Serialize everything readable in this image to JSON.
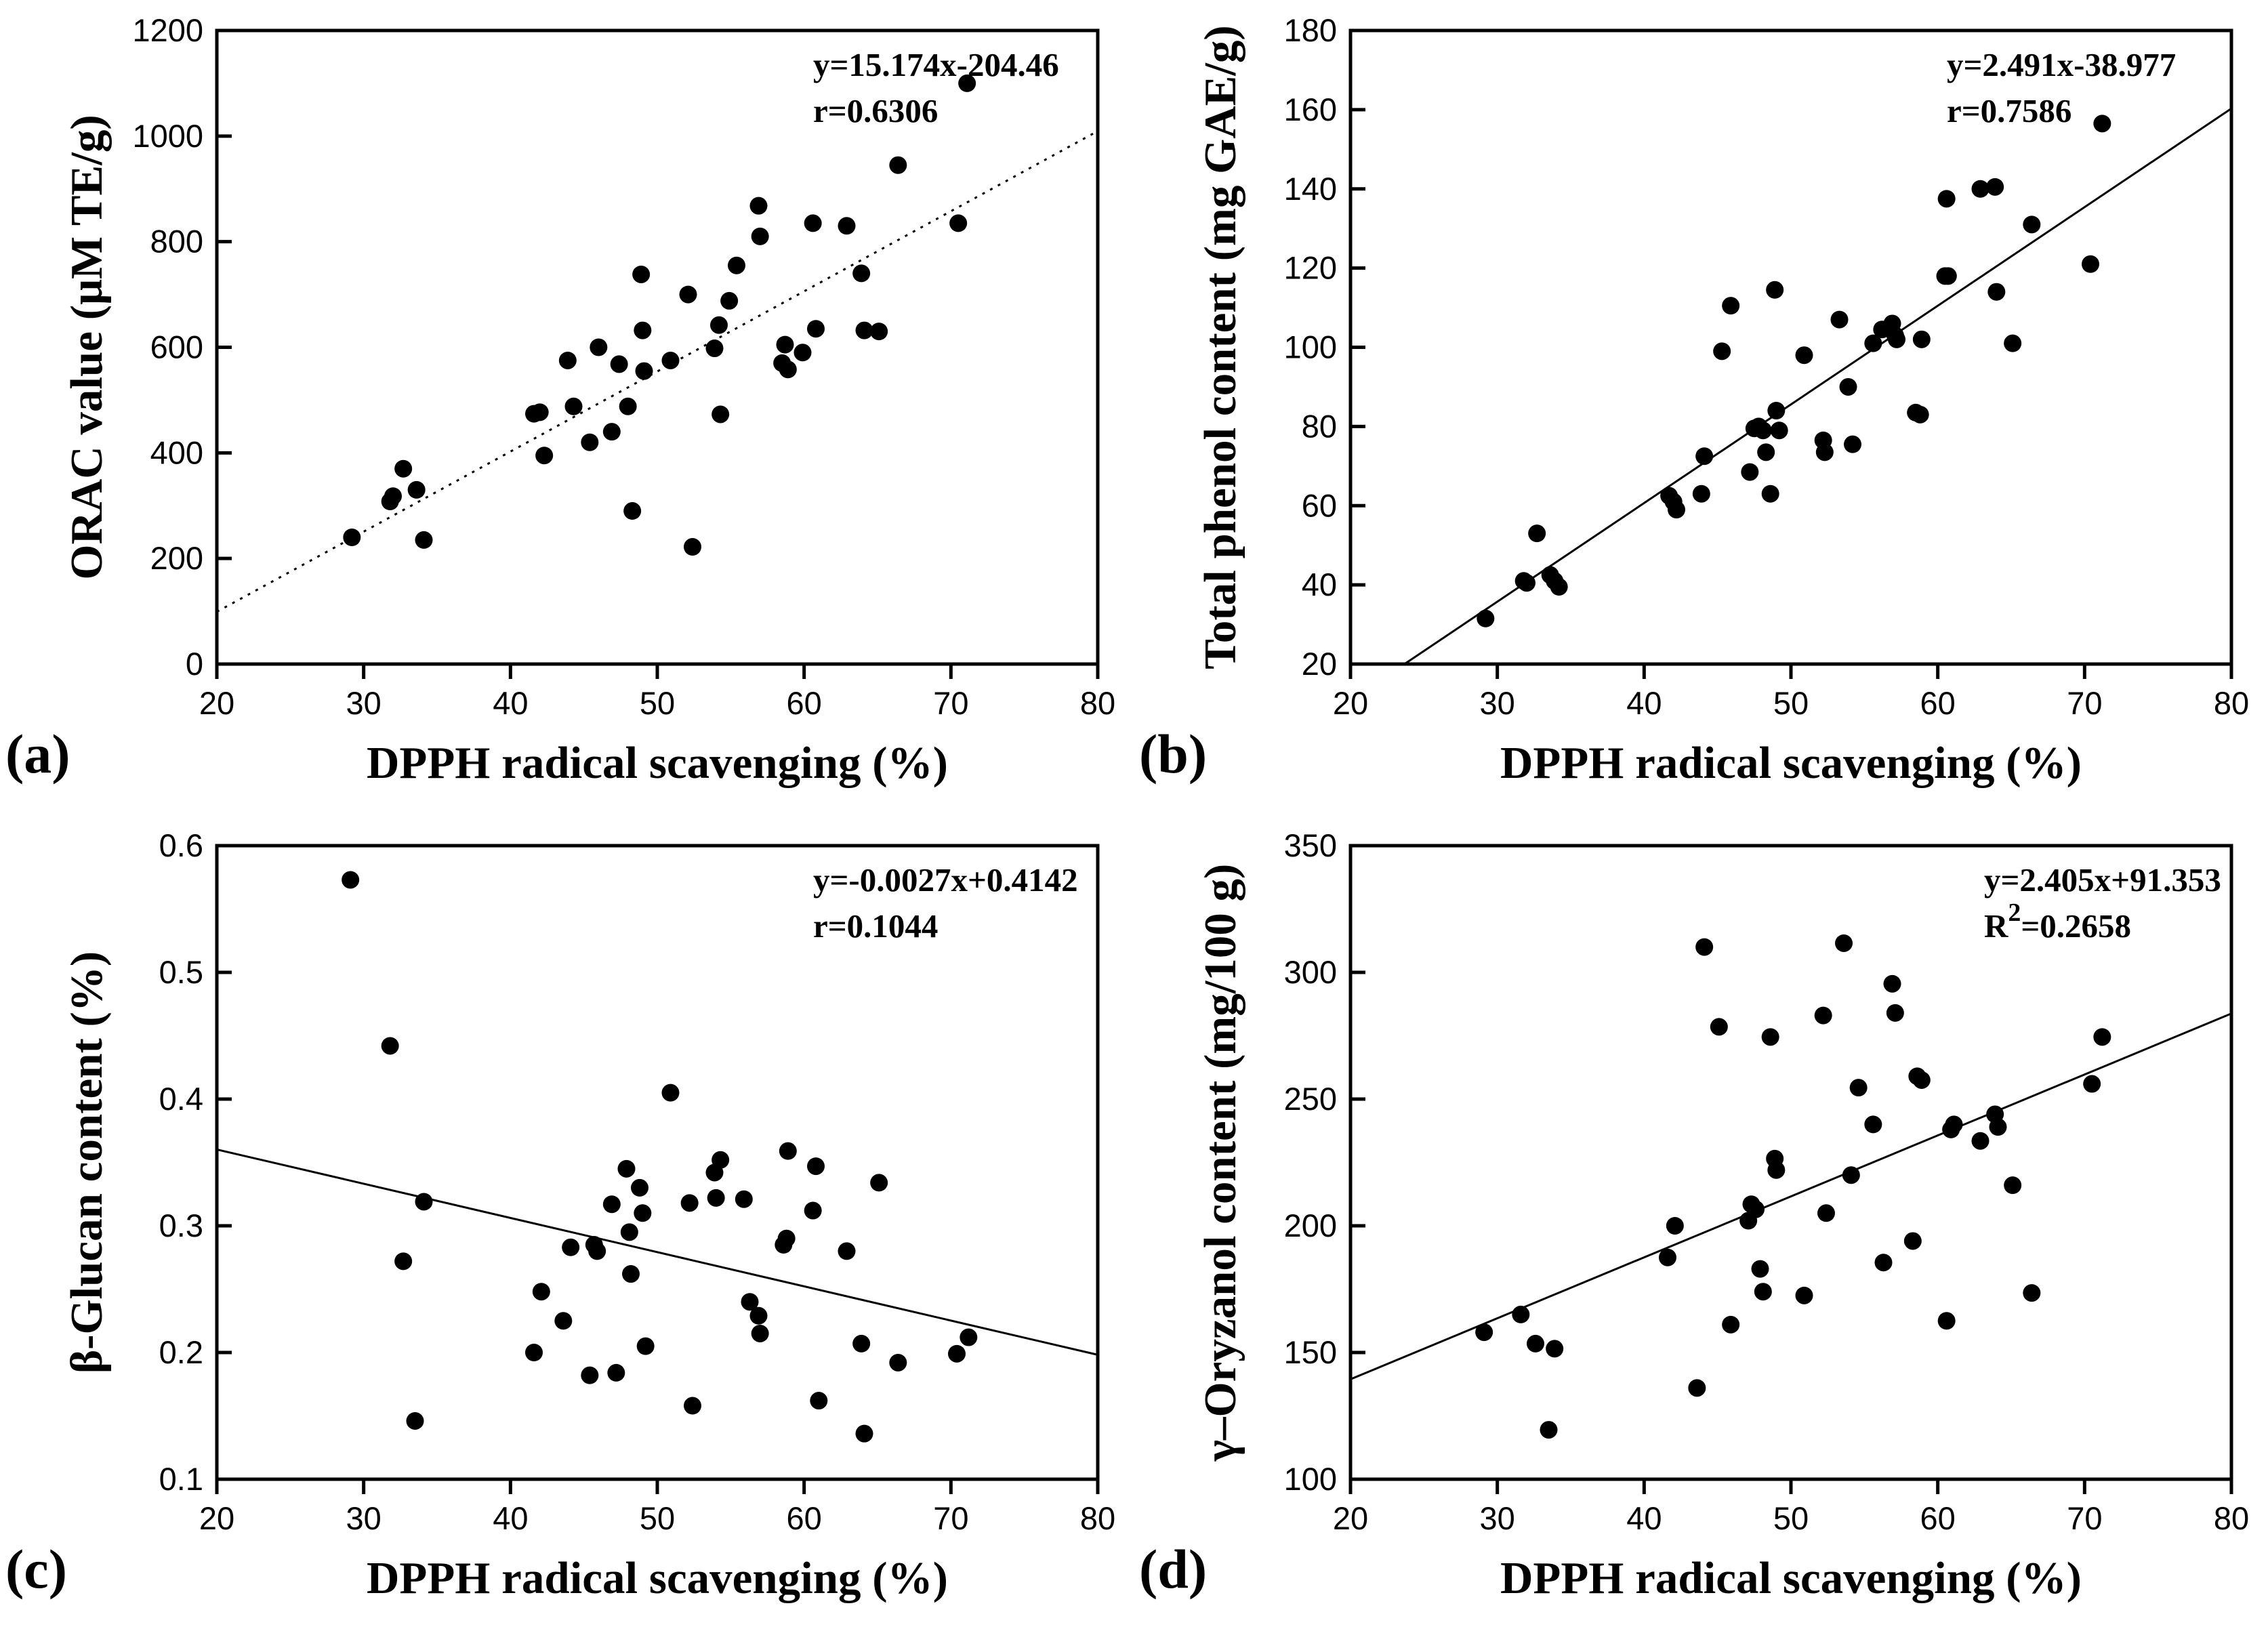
{
  "figure": {
    "background": "#ffffff",
    "marker_color": "#000000",
    "axis_color": "#000000",
    "shared_xlabel": "DPPH radical scavenging (%)"
  },
  "chart_data": [
    {
      "type": "scatter",
      "tag": "(a)",
      "xlabel": "DPPH radical scavenging (%)",
      "ylabel": "ORAC value (μM TE/g)",
      "equation": "y=15.174x-204.46",
      "r_label": "r=0.6306",
      "xlim": [
        20,
        80
      ],
      "ylim": [
        0,
        1200
      ],
      "x_ticks": [
        20,
        30,
        40,
        50,
        60,
        70,
        80
      ],
      "y_ticks": [
        0,
        200,
        400,
        600,
        800,
        1000,
        1200
      ],
      "grid": false,
      "legend": "none",
      "trend": {
        "slope": 15.174,
        "intercept": -204.46,
        "style": "dotted"
      },
      "marker_color": "#000000",
      "points": [
        [
          29.2,
          240
        ],
        [
          31.8,
          308
        ],
        [
          32.0,
          318
        ],
        [
          32.7,
          370
        ],
        [
          33.6,
          330
        ],
        [
          34.1,
          235
        ],
        [
          41.6,
          474
        ],
        [
          42.0,
          477
        ],
        [
          42.3,
          395
        ],
        [
          43.9,
          575
        ],
        [
          44.3,
          488
        ],
        [
          45.4,
          420
        ],
        [
          46.0,
          600
        ],
        [
          46.9,
          440
        ],
        [
          47.4,
          568
        ],
        [
          48.0,
          488
        ],
        [
          48.3,
          290
        ],
        [
          48.9,
          738
        ],
        [
          49.0,
          632
        ],
        [
          49.1,
          555
        ],
        [
          50.9,
          575
        ],
        [
          52.1,
          700
        ],
        [
          52.4,
          222
        ],
        [
          53.9,
          598
        ],
        [
          54.2,
          642
        ],
        [
          54.3,
          473
        ],
        [
          54.9,
          688
        ],
        [
          55.4,
          755
        ],
        [
          56.9,
          868
        ],
        [
          57.0,
          810
        ],
        [
          58.5,
          570
        ],
        [
          58.7,
          605
        ],
        [
          58.9,
          558
        ],
        [
          59.9,
          590
        ],
        [
          60.6,
          835
        ],
        [
          60.8,
          635
        ],
        [
          62.9,
          830
        ],
        [
          63.9,
          740
        ],
        [
          64.1,
          632
        ],
        [
          65.1,
          630
        ],
        [
          66.4,
          945
        ],
        [
          70.5,
          835
        ],
        [
          71.1,
          1100
        ]
      ]
    },
    {
      "type": "scatter",
      "tag": "(b)",
      "xlabel": "DPPH radical scavenging (%)",
      "ylabel": "Total phenol content (mg GAE/g)",
      "equation": "y=2.491x-38.977",
      "r_label": "r=0.7586",
      "xlim": [
        20,
        80
      ],
      "ylim": [
        20,
        180
      ],
      "x_ticks": [
        20,
        30,
        40,
        50,
        60,
        70,
        80
      ],
      "y_ticks": [
        20,
        40,
        60,
        80,
        100,
        120,
        140,
        160,
        180
      ],
      "grid": false,
      "legend": "none",
      "trend": {
        "slope": 2.491,
        "intercept": -38.977,
        "style": "solid"
      },
      "marker_color": "#000000",
      "points": [
        [
          29.2,
          31.5
        ],
        [
          31.8,
          41
        ],
        [
          32.0,
          40.5
        ],
        [
          32.7,
          53
        ],
        [
          33.6,
          42.5
        ],
        [
          33.9,
          41
        ],
        [
          34.2,
          39.5
        ],
        [
          41.7,
          62.5
        ],
        [
          42.0,
          61
        ],
        [
          42.2,
          59
        ],
        [
          43.9,
          63
        ],
        [
          44.1,
          72.5
        ],
        [
          45.3,
          99
        ],
        [
          45.9,
          110.5
        ],
        [
          47.2,
          68.5
        ],
        [
          47.5,
          79.5
        ],
        [
          47.8,
          80
        ],
        [
          48.1,
          79
        ],
        [
          48.3,
          73.5
        ],
        [
          48.6,
          63
        ],
        [
          48.9,
          114.5
        ],
        [
          49.0,
          84
        ],
        [
          49.2,
          79
        ],
        [
          50.9,
          98
        ],
        [
          52.2,
          76.5
        ],
        [
          52.3,
          73.5
        ],
        [
          53.3,
          107
        ],
        [
          53.9,
          90
        ],
        [
          54.2,
          75.5
        ],
        [
          55.6,
          101
        ],
        [
          56.2,
          104.5
        ],
        [
          56.9,
          106
        ],
        [
          57.1,
          103
        ],
        [
          57.2,
          102
        ],
        [
          58.5,
          83.5
        ],
        [
          58.8,
          83
        ],
        [
          58.9,
          102
        ],
        [
          60.5,
          118
        ],
        [
          60.7,
          118
        ],
        [
          60.6,
          137.5
        ],
        [
          62.9,
          140
        ],
        [
          63.9,
          140.5
        ],
        [
          64.0,
          114
        ],
        [
          65.1,
          101
        ],
        [
          66.4,
          131
        ],
        [
          70.4,
          121
        ],
        [
          71.2,
          156.5
        ]
      ]
    },
    {
      "type": "scatter",
      "tag": "(c)",
      "xlabel": "DPPH radical scavenging (%)",
      "ylabel": "β-Glucan content (%)",
      "equation": "y=-0.0027x+0.4142",
      "r_label": "r=0.1044",
      "xlim": [
        20,
        80
      ],
      "ylim": [
        0.1,
        0.6
      ],
      "x_ticks": [
        20,
        30,
        40,
        50,
        60,
        70,
        80
      ],
      "y_ticks": [
        0.1,
        0.2,
        0.3,
        0.4,
        0.5,
        0.6
      ],
      "grid": false,
      "legend": "none",
      "trend": {
        "slope": -0.0027,
        "intercept": 0.4142,
        "style": "solid"
      },
      "marker_color": "#000000",
      "points": [
        [
          29.1,
          0.573
        ],
        [
          31.8,
          0.442
        ],
        [
          32.7,
          0.272
        ],
        [
          33.5,
          0.146
        ],
        [
          34.1,
          0.319
        ],
        [
          41.6,
          0.2
        ],
        [
          42.1,
          0.248
        ],
        [
          43.6,
          0.225
        ],
        [
          44.1,
          0.283
        ],
        [
          45.4,
          0.182
        ],
        [
          45.7,
          0.285
        ],
        [
          45.9,
          0.28
        ],
        [
          46.9,
          0.317
        ],
        [
          47.2,
          0.184
        ],
        [
          47.9,
          0.345
        ],
        [
          48.1,
          0.295
        ],
        [
          48.2,
          0.262
        ],
        [
          48.8,
          0.33
        ],
        [
          49.0,
          0.31
        ],
        [
          49.2,
          0.205
        ],
        [
          50.9,
          0.405
        ],
        [
          52.2,
          0.318
        ],
        [
          52.4,
          0.158
        ],
        [
          53.9,
          0.342
        ],
        [
          54.0,
          0.322
        ],
        [
          54.3,
          0.352
        ],
        [
          55.9,
          0.321
        ],
        [
          56.3,
          0.24
        ],
        [
          56.9,
          0.229
        ],
        [
          57.0,
          0.215
        ],
        [
          58.6,
          0.285
        ],
        [
          58.8,
          0.29
        ],
        [
          58.9,
          0.359
        ],
        [
          60.6,
          0.312
        ],
        [
          60.8,
          0.347
        ],
        [
          61.0,
          0.162
        ],
        [
          62.9,
          0.28
        ],
        [
          63.9,
          0.207
        ],
        [
          64.1,
          0.136
        ],
        [
          65.1,
          0.334
        ],
        [
          66.4,
          0.192
        ],
        [
          70.4,
          0.199
        ],
        [
          71.2,
          0.212
        ]
      ]
    },
    {
      "type": "scatter",
      "tag": "(d)",
      "xlabel": "DPPH radical scavenging (%)",
      "ylabel": "γ–Oryzanol content (mg/100 g)",
      "equation": "y=2.405x+91.353",
      "r_label": "R²=0.2658",
      "xlim": [
        20,
        80
      ],
      "ylim": [
        100,
        350
      ],
      "x_ticks": [
        20,
        30,
        40,
        50,
        60,
        70,
        80
      ],
      "y_ticks": [
        100,
        150,
        200,
        250,
        300,
        350
      ],
      "grid": false,
      "legend": "none",
      "trend": {
        "slope": 2.405,
        "intercept": 91.353,
        "style": "solid"
      },
      "marker_color": "#000000",
      "points": [
        [
          29.1,
          158
        ],
        [
          31.6,
          165
        ],
        [
          32.6,
          153.5
        ],
        [
          33.5,
          119.5
        ],
        [
          33.9,
          151.5
        ],
        [
          41.6,
          187.5
        ],
        [
          42.1,
          200
        ],
        [
          43.6,
          136
        ],
        [
          44.1,
          310
        ],
        [
          45.1,
          278.5
        ],
        [
          45.9,
          161
        ],
        [
          47.1,
          202
        ],
        [
          47.3,
          208.5
        ],
        [
          47.6,
          206.5
        ],
        [
          47.9,
          183
        ],
        [
          48.1,
          174
        ],
        [
          48.6,
          274.5
        ],
        [
          48.9,
          226.5
        ],
        [
          49.0,
          222
        ],
        [
          50.9,
          172.5
        ],
        [
          52.2,
          283
        ],
        [
          52.4,
          205
        ],
        [
          53.6,
          311.5
        ],
        [
          54.1,
          220
        ],
        [
          54.6,
          254.5
        ],
        [
          55.6,
          240
        ],
        [
          56.3,
          185.5
        ],
        [
          56.9,
          295.5
        ],
        [
          57.1,
          284
        ],
        [
          58.3,
          194
        ],
        [
          58.6,
          259
        ],
        [
          58.9,
          257.5
        ],
        [
          60.6,
          162.5
        ],
        [
          60.9,
          238
        ],
        [
          61.1,
          240
        ],
        [
          62.9,
          233.5
        ],
        [
          63.9,
          244
        ],
        [
          64.1,
          239
        ],
        [
          65.1,
          216
        ],
        [
          66.4,
          173.5
        ],
        [
          70.5,
          256
        ],
        [
          71.2,
          274.5
        ]
      ]
    }
  ]
}
